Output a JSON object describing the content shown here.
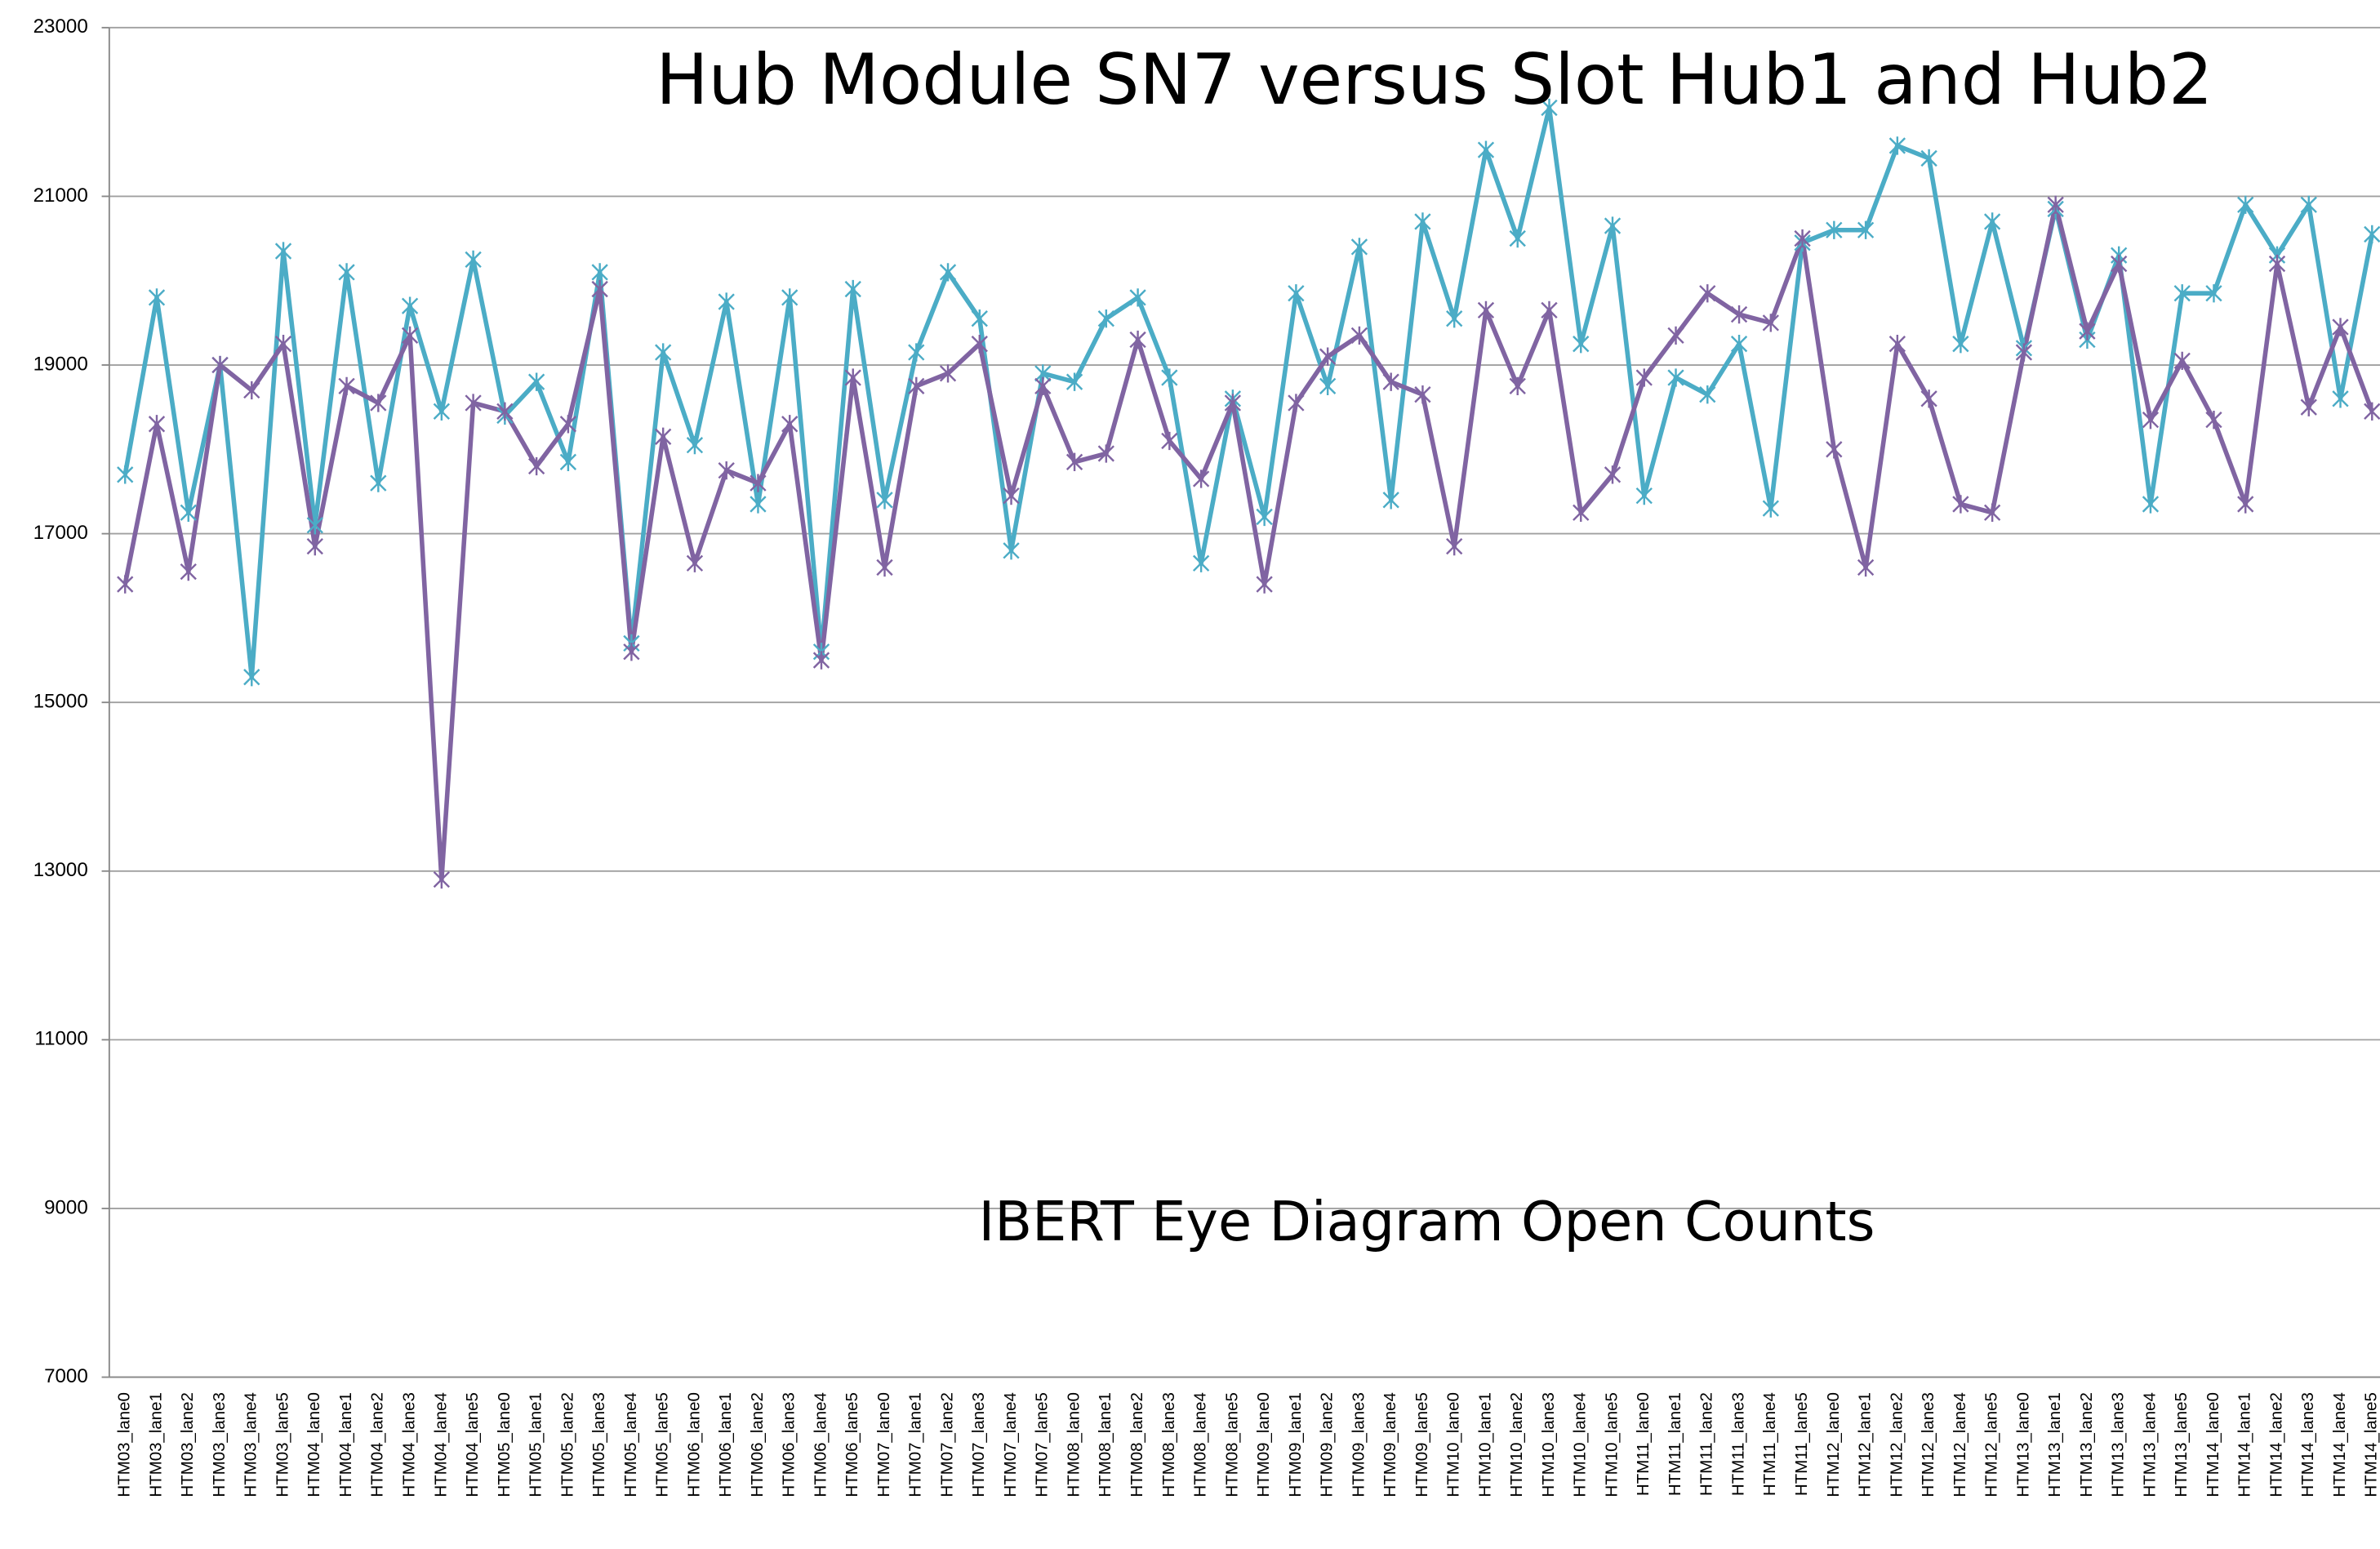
{
  "chart_data": {
    "type": "line",
    "title": "Hub  Module SN7 versus Slot Hub1 and Hub2",
    "annotation": "IBERT Eye Diagram Open Counts",
    "categories": [
      "HTM03_lane0",
      "HTM03_lane1",
      "HTM03_lane2",
      "HTM03_lane3",
      "HTM03_lane4",
      "HTM03_lane5",
      "HTM04_lane0",
      "HTM04_lane1",
      "HTM04_lane2",
      "HTM04_lane3",
      "HTM04_lane4",
      "HTM04_lane5",
      "HTM05_lane0",
      "HTM05_lane1",
      "HTM05_lane2",
      "HTM05_lane3",
      "HTM05_lane4",
      "HTM05_lane5",
      "HTM06_lane0",
      "HTM06_lane1",
      "HTM06_lane2",
      "HTM06_lane3",
      "HTM06_lane4",
      "HTM06_lane5",
      "HTM07_lane0",
      "HTM07_lane1",
      "HTM07_lane2",
      "HTM07_lane3",
      "HTM07_lane4",
      "HTM07_lane5",
      "HTM08_lane0",
      "HTM08_lane1",
      "HTM08_lane2",
      "HTM08_lane3",
      "HTM08_lane4",
      "HTM08_lane5",
      "HTM09_lane0",
      "HTM09_lane1",
      "HTM09_lane2",
      "HTM09_lane3",
      "HTM09_lane4",
      "HTM09_lane5",
      "HTM10_lane0",
      "HTM10_lane1",
      "HTM10_lane2",
      "HTM10_lane3",
      "HTM10_lane4",
      "HTM10_lane5",
      "HTM11_lane0",
      "HTM11_lane1",
      "HTM11_lane2",
      "HTM11_lane3",
      "HTM11_lane4",
      "HTM11_lane5",
      "HTM12_lane0",
      "HTM12_lane1",
      "HTM12_lane2",
      "HTM12_lane3",
      "HTM12_lane4",
      "HTM12_lane5",
      "HTM13_lane0",
      "HTM13_lane1",
      "HTM13_lane2",
      "HTM13_lane3",
      "HTM13_lane4",
      "HTM13_lane5",
      "HTM14_lane0",
      "HTM14_lane1",
      "HTM14_lane2",
      "HTM14_lane3",
      "HTM14_lane4",
      "HTM14_lane5"
    ],
    "series": [
      {
        "color": "#4bacc6",
        "values": [
          17700,
          19800,
          17250,
          19000,
          15300,
          20350,
          17100,
          20100,
          17600,
          19700,
          18450,
          20250,
          18400,
          18800,
          17850,
          20100,
          15700,
          19150,
          18050,
          19750,
          17350,
          19800,
          15600,
          19900,
          17400,
          19150,
          20100,
          19550,
          16800,
          18900,
          18800,
          19550,
          19800,
          18850,
          16650,
          18600,
          17200,
          19850,
          18750,
          20400,
          17400,
          20700,
          19550,
          21550,
          20500,
          22050,
          19250,
          20650,
          17450,
          18850,
          18650,
          19250,
          17300,
          20450,
          20600,
          20600,
          21600,
          21450,
          19250,
          20700,
          19200,
          20850,
          19300,
          20300,
          17350,
          19850,
          19850,
          20900,
          20300,
          20900,
          18600,
          20550
        ]
      },
      {
        "color": "#8064a2",
        "values": [
          16400,
          18300,
          16550,
          19000,
          18700,
          19250,
          16850,
          18750,
          18550,
          19350,
          12900,
          18550,
          18450,
          17800,
          18300,
          19900,
          15600,
          18150,
          16650,
          17750,
          17600,
          18300,
          15500,
          18850,
          16600,
          18750,
          18900,
          19250,
          17450,
          18750,
          17850,
          17950,
          19300,
          18100,
          17650,
          18550,
          16400,
          18550,
          19100,
          19350,
          18800,
          18650,
          16850,
          19650,
          18750,
          19650,
          17250,
          17700,
          18850,
          19350,
          19850,
          19600,
          19500,
          20500,
          18000,
          16600,
          19250,
          18600,
          17350,
          17250,
          19150,
          20900,
          19400,
          20200,
          18350,
          19050,
          18350,
          17350,
          20200,
          18500,
          19450,
          18450
        ]
      }
    ],
    "ylim": [
      7000,
      23000
    ],
    "yticks": [
      7000,
      9000,
      11000,
      13000,
      15000,
      17000,
      19000,
      21000,
      23000
    ],
    "grid": true
  }
}
